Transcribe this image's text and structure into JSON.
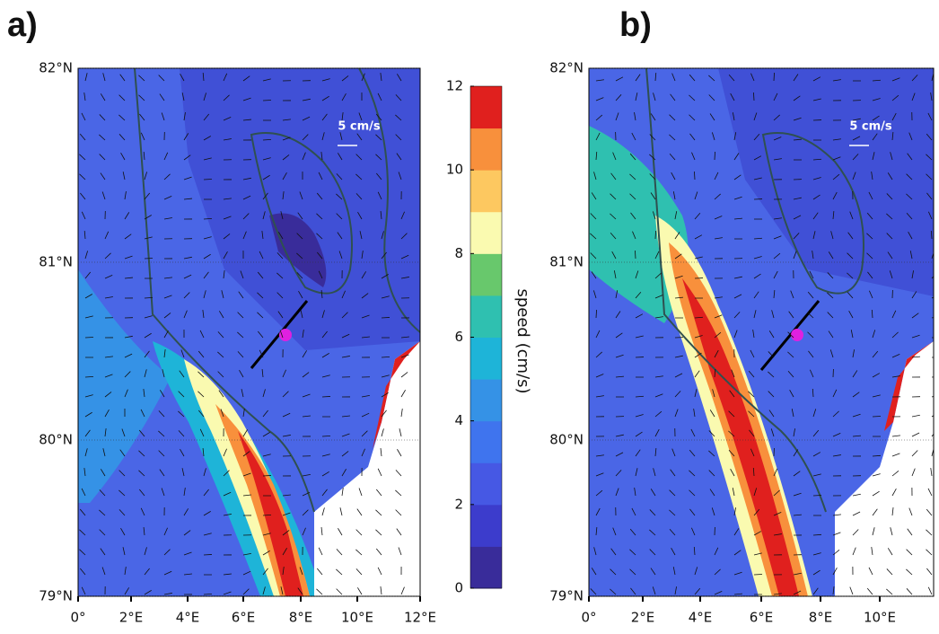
{
  "panels": [
    {
      "label": "a)",
      "scale_label": "5 cm/s",
      "lat_ticks": [
        "79°N",
        "80°N",
        "81°N",
        "82°N"
      ],
      "lon_ticks": [
        "0°",
        "2°E",
        "4°E",
        "6°E",
        "8°E",
        "10°E",
        "12°E"
      ]
    },
    {
      "label": "b)",
      "scale_label": "5 cm/s",
      "lat_ticks": [
        "79°N",
        "80°N",
        "81°N",
        "82°N"
      ],
      "lon_ticks": [
        "0°",
        "2°E",
        "4°E",
        "6°E",
        "8°E",
        "10°E"
      ]
    }
  ],
  "colorbar": {
    "label": "speed (cm/s)",
    "lim": [
      0,
      12
    ],
    "ticks": [
      0,
      2,
      4,
      6,
      8,
      10,
      12
    ],
    "colors": [
      "#392c9a",
      "#3c3ccc",
      "#4658e4",
      "#3f74ee",
      "#3592e6",
      "#1eb4d8",
      "#2fc0b0",
      "#68c86c",
      "#fafab0",
      "#fdc860",
      "#f8903c",
      "#e0201e"
    ]
  }
}
